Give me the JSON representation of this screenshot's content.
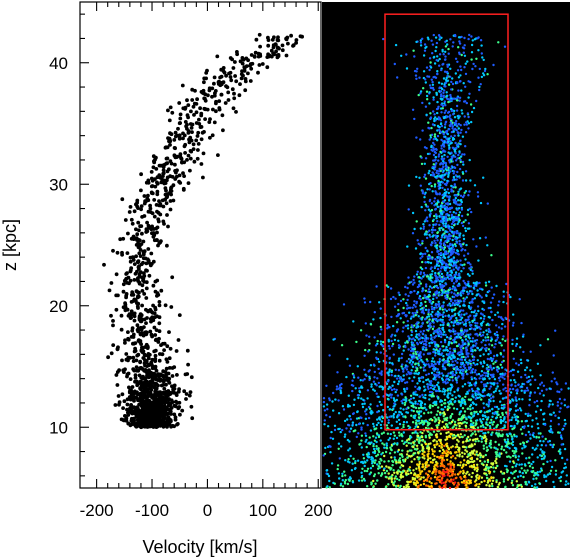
{
  "chart_data": [
    {
      "type": "scatter",
      "panel": "left",
      "title": "",
      "xlabel": "Velocity [km/s]",
      "ylabel": "z [kpc]",
      "xlim": [
        -230,
        205
      ],
      "ylim": [
        5,
        45
      ],
      "x_ticks": [
        -200,
        -100,
        0,
        100,
        200
      ],
      "x_tick_labels": [
        "-200",
        "-100",
        "0",
        "100",
        "200"
      ],
      "y_ticks": [
        10,
        20,
        30,
        40
      ],
      "y_tick_labels": [
        "10",
        "20",
        "30",
        "40"
      ],
      "grid": false,
      "marker_color": "#000000",
      "description_of_trend": [
        {
          "z": 10,
          "v_center": -100,
          "v_spread": 45
        },
        {
          "z": 14,
          "v_center": -100,
          "v_spread": 55
        },
        {
          "z": 20,
          "v_center": -125,
          "v_spread": 45
        },
        {
          "z": 25,
          "v_center": -120,
          "v_spread": 40
        },
        {
          "z": 30,
          "v_center": -80,
          "v_spread": 45
        },
        {
          "z": 35,
          "v_center": -30,
          "v_spread": 55
        },
        {
          "z": 38,
          "v_center": 20,
          "v_spread": 55
        },
        {
          "z": 40,
          "v_center": 70,
          "v_spread": 55
        },
        {
          "z": 42,
          "v_center": 140,
          "v_spread": 50
        }
      ]
    },
    {
      "type": "heatmap",
      "panel": "right",
      "title": "",
      "background_color": "#000000",
      "colormap": [
        "#1e5bff",
        "#00c8ff",
        "#3cff8c",
        "#d4ff3c",
        "#ffd200",
        "#ff6a00",
        "#ff1a1a"
      ],
      "ylim": [
        5,
        45
      ],
      "box_color": "#ff2020",
      "selection_box_z": [
        9.8,
        44.0
      ]
    }
  ]
}
